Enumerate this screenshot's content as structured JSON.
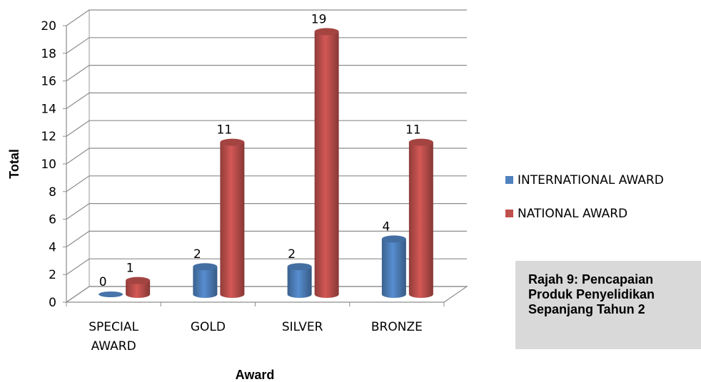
{
  "chart_data": {
    "type": "bar",
    "categories": [
      "SPECIAL\nAWARD",
      "GOLD",
      "SILVER",
      "BRONZE"
    ],
    "series": [
      {
        "name": "INTERNATIONAL AWARD",
        "values": [
          0,
          2,
          2,
          4
        ],
        "color": "#4f81bd"
      },
      {
        "name": "NATIONAL AWARD",
        "values": [
          1,
          11,
          19,
          11
        ],
        "color": "#c0504d"
      }
    ],
    "xlabel": "Award",
    "ylabel": "Total",
    "ylim": [
      0,
      20
    ],
    "yticks": [
      "0",
      "2",
      "4",
      "6",
      "8",
      "10",
      "12",
      "14",
      "16",
      "18",
      "20"
    ],
    "grid": true,
    "legend": "right"
  },
  "caption": {
    "line1": "Rajah 9: Pencapaian",
    "line2": "Produk Penyelidikan",
    "line3": "Sepanjang Tahun 2"
  }
}
